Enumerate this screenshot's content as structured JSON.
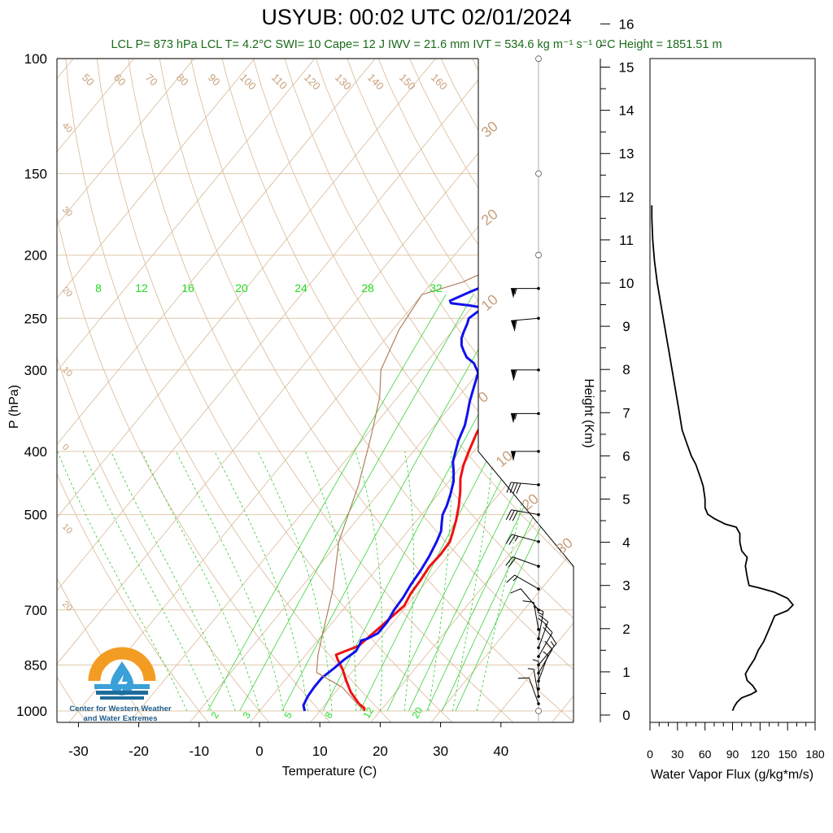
{
  "title": "USYUB: 00:02 UTC 02/01/2024",
  "subtitle": "LCL P= 873 hPa  LCL T= 4.2°C  SWI= 10  Cape= 12 J  IWV = 21.6 mm  IVT = 534.6 kg m⁻¹ s⁻¹  0°C Height = 1851.51 m",
  "logo_caption": [
    "Center for Western Weather",
    "and Water Extremes"
  ],
  "colors": {
    "temperature": "#ee1111",
    "dewpoint": "#1111ee",
    "parcel": "#b08060",
    "dry_adiabat": "#d9b896",
    "moist_adiabat": "#33cc33",
    "mixing_ratio": "#22cc22",
    "isobar": "#e0c9ac",
    "title_green": "#1a6b1a"
  },
  "chart_data": [
    {
      "type": "line",
      "title": "USYUB: 00:02 UTC 02/01/2024",
      "subtitle": "LCL P= 873 hPa  LCL T= 4.2°C  SWI= 10  Cape= 12 J  IWV = 21.6 mm  IVT = 534.6 kg m⁻¹ s⁻¹  0°C Height = 1851.51 m",
      "xlabel": "Temperature (C)",
      "ylabel": "P (hPa)",
      "xlim": [
        -34,
        52
      ],
      "ylim": [
        1000,
        100
      ],
      "yscale": "log",
      "x_ticks": [
        "-30",
        "-20",
        "-10",
        "0",
        "10",
        "20",
        "30",
        "40"
      ],
      "y_ticks": [
        "100",
        "150",
        "200",
        "250",
        "300",
        "400",
        "500",
        "700",
        "850",
        "1000"
      ],
      "isotherm_labels": [
        "30",
        "20",
        "10",
        "0",
        "10",
        "20",
        "30"
      ],
      "dry_adiabat_labels": [
        "50",
        "60",
        "70",
        "80",
        "90",
        "100",
        "110",
        "120",
        "130",
        "140",
        "150",
        "160"
      ],
      "left_adiabat_labels": [
        "40",
        "30",
        "20",
        "10",
        "0",
        "10",
        "20"
      ],
      "mixing_ratio_labels_top": [
        "8",
        "12",
        "16",
        "20",
        "24",
        "28",
        "32"
      ],
      "mixing_ratio_labels_bottom": [
        "2",
        "3",
        "5",
        "8",
        "12",
        "20"
      ],
      "series": [
        {
          "name": "",
          "role": "temperature",
          "points": [
            [
              17.3,
              1000
            ],
            [
              17.0,
              990
            ],
            [
              15.5,
              975
            ],
            [
              12.5,
              935
            ],
            [
              10.0,
              895
            ],
            [
              8.0,
              862
            ],
            [
              6.0,
              835
            ],
            [
              5.0,
              820
            ],
            [
              7.5,
              795
            ],
            [
              8.0,
              770
            ],
            [
              8.5,
              745
            ],
            [
              9.2,
              708
            ],
            [
              9.6,
              690
            ],
            [
              9.0,
              660
            ],
            [
              8.8,
              630
            ],
            [
              8.4,
              600
            ],
            [
              8.6,
              575
            ],
            [
              8.4,
              550
            ],
            [
              7.5,
              530
            ],
            [
              6.5,
              510
            ],
            [
              5.0,
              485
            ],
            [
              3.2,
              460
            ],
            [
              1.5,
              440
            ],
            [
              0.2,
              420
            ],
            [
              -0.8,
              400
            ],
            [
              -2.0,
              375
            ],
            [
              -2.8,
              350
            ],
            [
              -3.8,
              330
            ],
            [
              -4.5,
              315
            ],
            [
              -5.5,
              303
            ],
            [
              -7.0,
              290
            ],
            [
              -9.0,
              275
            ],
            [
              -12.0,
              255
            ],
            [
              -13.5,
              245
            ],
            [
              -13.8,
              240
            ],
            [
              -12.0,
              235
            ],
            [
              -10.5,
              232
            ],
            [
              -8.8,
              230
            ],
            [
              -5.5,
              225
            ],
            [
              -3.0,
              218
            ],
            [
              0.5,
              210
            ],
            [
              3.8,
              201
            ]
          ]
        },
        {
          "name": "",
          "role": "dewpoint",
          "points": [
            [
              7.5,
              1000
            ],
            [
              6.5,
              980
            ],
            [
              6.0,
              950
            ],
            [
              5.8,
              920
            ],
            [
              5.8,
              890
            ],
            [
              6.5,
              860
            ],
            [
              7.0,
              835
            ],
            [
              7.8,
              810
            ],
            [
              7.5,
              790
            ],
            [
              7.2,
              780
            ],
            [
              8.0,
              775
            ],
            [
              9.0,
              760
            ],
            [
              9.0,
              730
            ],
            [
              8.5,
              700
            ],
            [
              8.3,
              670
            ],
            [
              7.8,
              640
            ],
            [
              7.5,
              610
            ],
            [
              7.0,
              580
            ],
            [
              6.2,
              550
            ],
            [
              5.5,
              530
            ],
            [
              4.5,
              515
            ],
            [
              3.5,
              500
            ],
            [
              3.0,
              485
            ],
            [
              2.0,
              465
            ],
            [
              0.8,
              445
            ],
            [
              -0.5,
              430
            ],
            [
              -2.0,
              415
            ],
            [
              -3.0,
              400
            ],
            [
              -4.0,
              385
            ],
            [
              -5.0,
              365
            ],
            [
              -6.2,
              350
            ],
            [
              -7.5,
              335
            ],
            [
              -8.8,
              318
            ],
            [
              -10.0,
              303
            ],
            [
              -12.0,
              293
            ],
            [
              -14.0,
              287
            ],
            [
              -15.5,
              280
            ],
            [
              -16.5,
              275
            ],
            [
              -17.5,
              268
            ],
            [
              -18.0,
              262
            ],
            [
              -18.5,
              255
            ],
            [
              -19.0,
              250
            ],
            [
              -18.5,
              245
            ],
            [
              -18.0,
              241
            ],
            [
              -20.5,
              239
            ],
            [
              -24.0,
              237
            ],
            [
              -24.5,
              235
            ],
            [
              -22.5,
              228
            ],
            [
              -21.5,
              225
            ],
            [
              -21.5,
              222
            ],
            [
              -20.0,
              218
            ],
            [
              -19.0,
              215
            ],
            [
              -18.5,
              210
            ],
            [
              -16.5,
              205
            ],
            [
              -15.5,
              201
            ]
          ]
        },
        {
          "name": "",
          "role": "parcel",
          "points": [
            [
              17.3,
              1000
            ],
            [
              10.5,
              920
            ],
            [
              4.2,
              873
            ],
            [
              2.0,
              820
            ],
            [
              -0.5,
              750
            ],
            [
              -4.5,
              650
            ],
            [
              -10.0,
              550
            ],
            [
              -14.5,
              450
            ],
            [
              -19.0,
              380
            ],
            [
              -23.0,
              330
            ],
            [
              -26.5,
              300
            ],
            [
              -29.0,
              260
            ],
            [
              -30.0,
              230
            ],
            [
              -25.0,
              220
            ],
            [
              -12.0,
              180
            ],
            [
              0.0,
              150
            ],
            [
              14.0,
              120
            ],
            [
              22.0,
              108
            ],
            [
              28.0,
              100
            ]
          ]
        }
      ],
      "wind_barbs": [
        {
          "p": 1000,
          "dir": 0,
          "spd": 0
        },
        {
          "p": 975,
          "dir": 340,
          "spd": 10
        },
        {
          "p": 950,
          "dir": 350,
          "spd": 5
        },
        {
          "p": 925,
          "dir": 0,
          "spd": 5
        },
        {
          "p": 900,
          "dir": 20,
          "spd": 5
        },
        {
          "p": 875,
          "dir": 30,
          "spd": 10
        },
        {
          "p": 850,
          "dir": 40,
          "spd": 15
        },
        {
          "p": 825,
          "dir": 30,
          "spd": 20
        },
        {
          "p": 800,
          "dir": 20,
          "spd": 20
        },
        {
          "p": 775,
          "dir": 10,
          "spd": 15
        },
        {
          "p": 750,
          "dir": 350,
          "spd": 10
        },
        {
          "p": 700,
          "dir": 320,
          "spd": 10
        },
        {
          "p": 650,
          "dir": 300,
          "spd": 15
        },
        {
          "p": 600,
          "dir": 290,
          "spd": 20
        },
        {
          "p": 550,
          "dir": 285,
          "spd": 25
        },
        {
          "p": 500,
          "dir": 280,
          "spd": 30
        },
        {
          "p": 450,
          "dir": 275,
          "spd": 40
        },
        {
          "p": 400,
          "dir": 270,
          "spd": 50
        },
        {
          "p": 350,
          "dir": 270,
          "spd": 55
        },
        {
          "p": 300,
          "dir": 270,
          "spd": 60
        },
        {
          "p": 250,
          "dir": 265,
          "spd": 60
        },
        {
          "p": 225,
          "dir": 270,
          "spd": 55
        },
        {
          "p": 200,
          "dir": 0,
          "spd": 0
        },
        {
          "p": 150,
          "dir": 0,
          "spd": 0
        },
        {
          "p": 100,
          "dir": 0,
          "spd": 0
        }
      ]
    },
    {
      "type": "line",
      "xlabel": "Water Vapor Flux (g/kg*m/s)",
      "ylabel": "Height (Km)",
      "xlim": [
        0,
        180
      ],
      "ylim": [
        -0.2,
        16.4
      ],
      "x_ticks": [
        "0",
        "30",
        "60",
        "90",
        "120",
        "150",
        "180"
      ],
      "y_ticks": [
        "0",
        "1",
        "2",
        "3",
        "4",
        "5",
        "6",
        "7",
        "8",
        "9",
        "10",
        "11",
        "12",
        "13",
        "14",
        "15",
        "16"
      ],
      "series": [
        {
          "name": "",
          "points": [
            [
              90,
              0.1
            ],
            [
              92,
              0.2
            ],
            [
              95,
              0.3
            ],
            [
              100,
              0.4
            ],
            [
              110,
              0.48
            ],
            [
              116,
              0.55
            ],
            [
              112,
              0.68
            ],
            [
              106,
              0.8
            ],
            [
              104,
              0.95
            ],
            [
              108,
              1.1
            ],
            [
              114,
              1.3
            ],
            [
              118,
              1.5
            ],
            [
              124,
              1.7
            ],
            [
              128,
              1.9
            ],
            [
              132,
              2.1
            ],
            [
              136,
              2.3
            ],
            [
              150,
              2.42
            ],
            [
              156,
              2.55
            ],
            [
              150,
              2.7
            ],
            [
              135,
              2.85
            ],
            [
              118,
              2.95
            ],
            [
              108,
              3.0
            ],
            [
              106,
              3.2
            ],
            [
              104,
              3.45
            ],
            [
              106,
              3.65
            ],
            [
              100,
              3.8
            ],
            [
              98,
              4.0
            ],
            [
              98,
              4.2
            ],
            [
              94,
              4.35
            ],
            [
              82,
              4.42
            ],
            [
              70,
              4.55
            ],
            [
              63,
              4.65
            ],
            [
              60,
              4.8
            ],
            [
              60,
              5.0
            ],
            [
              58,
              5.3
            ],
            [
              55,
              5.5
            ],
            [
              50,
              5.8
            ],
            [
              45,
              6.0
            ],
            [
              40,
              6.3
            ],
            [
              35,
              6.6
            ],
            [
              32,
              7.0
            ],
            [
              28,
              7.5
            ],
            [
              24,
              8.0
            ],
            [
              20,
              8.5
            ],
            [
              16,
              9.0
            ],
            [
              12,
              9.5
            ],
            [
              8,
              10.0
            ],
            [
              5,
              10.5
            ],
            [
              3,
              11.0
            ],
            [
              2,
              11.5
            ],
            [
              2,
              11.8
            ]
          ]
        }
      ]
    }
  ]
}
